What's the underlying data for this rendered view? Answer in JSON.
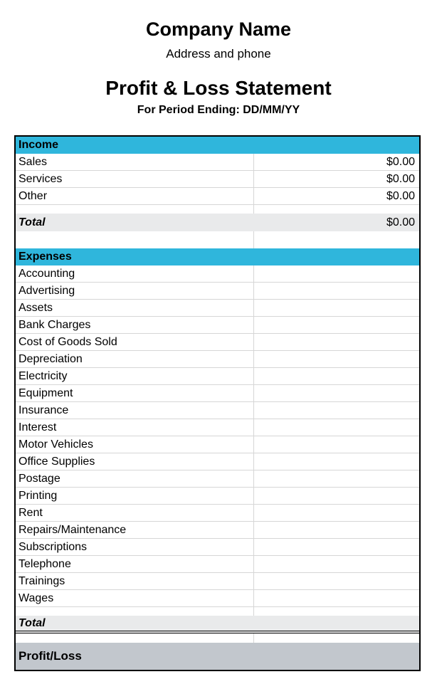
{
  "header": {
    "company_name": "Company Name",
    "address_line": "Address and phone",
    "statement_title": "Profit & Loss Statement",
    "period_line": "For Period Ending: DD/MM/YY"
  },
  "colors": {
    "section_header_bg": "#2FB6DC",
    "total_row_bg": "#E9EAEB",
    "profit_loss_bg": "#C2C7CD",
    "grid_line": "#D6D6D6",
    "table_border": "#000000"
  },
  "income": {
    "section_label": "Income",
    "rows": [
      {
        "label": "Sales",
        "value": "$0.00"
      },
      {
        "label": "Services",
        "value": "$0.00"
      },
      {
        "label": "Other",
        "value": "$0.00"
      }
    ],
    "total_label": "Total",
    "total_value": "$0.00"
  },
  "expenses": {
    "section_label": "Expenses",
    "rows": [
      {
        "label": "Accounting",
        "value": ""
      },
      {
        "label": "Advertising",
        "value": ""
      },
      {
        "label": "Assets",
        "value": ""
      },
      {
        "label": "Bank Charges",
        "value": ""
      },
      {
        "label": "Cost of Goods Sold",
        "value": ""
      },
      {
        "label": "Depreciation",
        "value": ""
      },
      {
        "label": "Electricity",
        "value": ""
      },
      {
        "label": "Equipment",
        "value": ""
      },
      {
        "label": "Insurance",
        "value": ""
      },
      {
        "label": "Interest",
        "value": ""
      },
      {
        "label": "Motor Vehicles",
        "value": ""
      },
      {
        "label": "Office Supplies",
        "value": ""
      },
      {
        "label": "Postage",
        "value": ""
      },
      {
        "label": "Printing",
        "value": ""
      },
      {
        "label": "Rent",
        "value": ""
      },
      {
        "label": "Repairs/Maintenance",
        "value": ""
      },
      {
        "label": "Subscriptions",
        "value": ""
      },
      {
        "label": "Telephone",
        "value": ""
      },
      {
        "label": "Trainings",
        "value": ""
      },
      {
        "label": "Wages",
        "value": ""
      }
    ],
    "total_label": "Total",
    "total_value": ""
  },
  "summary": {
    "profit_loss_label": "Profit/Loss",
    "profit_loss_value": ""
  }
}
